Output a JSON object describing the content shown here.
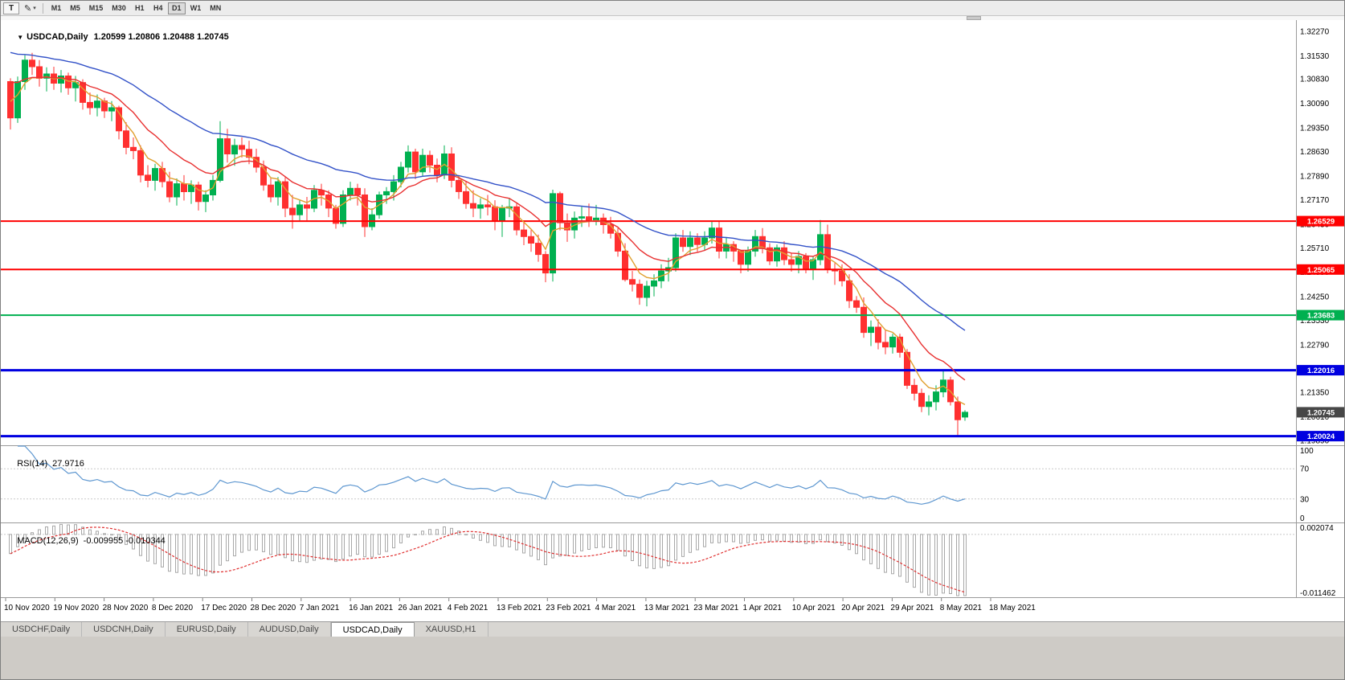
{
  "toolbar": {
    "t_button": "T",
    "annotation_tool": "✎",
    "dropdown_arrow": "▾",
    "timeframes": [
      "M1",
      "M5",
      "M15",
      "M30",
      "H1",
      "H4",
      "D1",
      "W1",
      "MN"
    ],
    "active_timeframe": "D1"
  },
  "price_pane": {
    "collapse_arrow": "▼",
    "symbol_label": "USDCAD,Daily",
    "ohlc_text": "1.20599 1.20806 1.20488 1.20745",
    "ohlc": {
      "open": 1.20599,
      "high": 1.20806,
      "low": 1.20488,
      "close": 1.20745
    },
    "axis_labels": [
      "1.32270",
      "1.31530",
      "1.30830",
      "1.30090",
      "1.29350",
      "1.28630",
      "1.27890",
      "1.27170",
      "1.26430",
      "1.25710",
      "1.24990",
      "1.24250",
      "1.23530",
      "1.22790",
      "1.22050",
      "1.21350",
      "1.20610",
      "1.19890"
    ],
    "current_price_badge": {
      "price": 1.20745,
      "label": "1.20745",
      "color": "#474747"
    }
  },
  "rsi_pane": {
    "name": "RSI(14)",
    "value": "27.9716",
    "axis_labels": [
      "100",
      "70",
      "30",
      "0"
    ],
    "levels": [
      70,
      30
    ],
    "range": [
      0,
      100
    ],
    "line_color": "#5e97d0"
  },
  "macd_pane": {
    "name": "MACD(12,26,9)",
    "values": "-0.009955 -0.010344",
    "macd_value": -0.009955,
    "signal_value": -0.010344,
    "axis_top_label": "0.002074",
    "axis_bottom_label": "-0.011462",
    "range": [
      -0.011462,
      0.002074
    ],
    "histogram_color": "#a8a8a8",
    "signal_color": "#e03030"
  },
  "time_axis": {
    "labels": [
      "10 Nov 2020",
      "19 Nov 2020",
      "28 Nov 2020",
      "8 Dec 2020",
      "17 Dec 2020",
      "28 Dec 2020",
      "7 Jan 2021",
      "16 Jan 2021",
      "26 Jan 2021",
      "4 Feb 2021",
      "13 Feb 2021",
      "23 Feb 2021",
      "4 Mar 2021",
      "13 Mar 2021",
      "23 Mar 2021",
      "1 Apr 2021",
      "10 Apr 2021",
      "20 Apr 2021",
      "29 Apr 2021",
      "8 May 2021",
      "18 May 2021"
    ]
  },
  "tabs": {
    "items": [
      "USDCHF,Daily",
      "USDCNH,Daily",
      "EURUSD,Daily",
      "AUDUSD,Daily",
      "USDCAD,Daily",
      "XAUUSD,H1"
    ],
    "active": "USDCAD,Daily"
  },
  "chart_data": {
    "type": "candlestick",
    "symbol": "USDCAD",
    "timeframe": "Daily",
    "visible_price_range": [
      1.1977,
      1.3261
    ],
    "colors": {
      "bull": "#00B050",
      "bear": "#FF3030"
    },
    "hlines": [
      {
        "price": 1.26529,
        "label": "1.26529",
        "color": "#FF0000",
        "width": 2
      },
      {
        "price": 1.25065,
        "label": "1.25065",
        "color": "#FF0000",
        "width": 2
      },
      {
        "price": 1.23683,
        "label": "1.23683",
        "color": "#00B050",
        "width": 2
      },
      {
        "price": 1.22016,
        "label": "1.22016",
        "color": "#0000E0",
        "width": 3
      },
      {
        "price": 1.20024,
        "label": "1.20024",
        "color": "#0000E0",
        "width": 3
      }
    ],
    "moving_averages": [
      {
        "name": "ma-fast",
        "period": 5,
        "method": "ema",
        "color": "#E0A030",
        "start_value": 1.304
      },
      {
        "name": "ma-medium",
        "period": 13,
        "method": "ema",
        "color": "#E83030",
        "start_value": 1.309
      },
      {
        "name": "ma-slow",
        "period": 34,
        "method": "ema",
        "color": "#3352C8",
        "start_value": 1.3175
      }
    ],
    "indicators": [
      {
        "type": "RSI",
        "period": 14,
        "current_value": 27.9716,
        "levels": [
          70,
          30
        ]
      },
      {
        "type": "MACD",
        "fast": 12,
        "slow": 26,
        "signal": 9,
        "current_macd": -0.009955,
        "current_signal": -0.010344
      }
    ],
    "candles_ohlc": [
      [
        1.3075,
        1.3085,
        1.293,
        1.2965
      ],
      [
        1.2965,
        1.309,
        1.295,
        1.3075
      ],
      [
        1.3075,
        1.3155,
        1.305,
        1.314
      ],
      [
        1.314,
        1.3162,
        1.3095,
        1.312
      ],
      [
        1.312,
        1.314,
        1.306,
        1.3085
      ],
      [
        1.3085,
        1.3118,
        1.3045,
        1.3098
      ],
      [
        1.3098,
        1.312,
        1.305,
        1.307
      ],
      [
        1.307,
        1.311,
        1.3042,
        1.3092
      ],
      [
        1.3092,
        1.3102,
        1.3035,
        1.3056
      ],
      [
        1.3056,
        1.3092,
        1.3015,
        1.3072
      ],
      [
        1.3072,
        1.3082,
        1.299,
        1.3012
      ],
      [
        1.3012,
        1.3042,
        1.2975,
        1.2996
      ],
      [
        1.2996,
        1.3036,
        1.297,
        1.3016
      ],
      [
        1.3016,
        1.3026,
        1.2965,
        1.2986
      ],
      [
        1.2986,
        1.3016,
        1.2955,
        1.2996
      ],
      [
        1.2996,
        1.3002,
        1.29,
        1.2926
      ],
      [
        1.2926,
        1.2952,
        1.2855,
        1.2876
      ],
      [
        1.2876,
        1.2906,
        1.284,
        1.2866
      ],
      [
        1.2866,
        1.2882,
        1.277,
        1.2792
      ],
      [
        1.2792,
        1.2822,
        1.2755,
        1.2776
      ],
      [
        1.2776,
        1.2826,
        1.2745,
        1.2812
      ],
      [
        1.2812,
        1.2832,
        1.2755,
        1.2772
      ],
      [
        1.2772,
        1.2802,
        1.271,
        1.2726
      ],
      [
        1.2726,
        1.2782,
        1.27,
        1.2766
      ],
      [
        1.2766,
        1.2792,
        1.2715,
        1.2742
      ],
      [
        1.2742,
        1.2776,
        1.2705,
        1.2762
      ],
      [
        1.2762,
        1.2772,
        1.2685,
        1.2712
      ],
      [
        1.2712,
        1.2746,
        1.268,
        1.2732
      ],
      [
        1.2732,
        1.2792,
        1.2715,
        1.2776
      ],
      [
        1.2776,
        1.2955,
        1.277,
        1.2902
      ],
      [
        1.2902,
        1.2932,
        1.283,
        1.2856
      ],
      [
        1.2856,
        1.2902,
        1.282,
        1.2882
      ],
      [
        1.2882,
        1.2906,
        1.2845,
        1.287
      ],
      [
        1.287,
        1.2896,
        1.2825,
        1.2846
      ],
      [
        1.2846,
        1.2872,
        1.28,
        1.2816
      ],
      [
        1.2816,
        1.2836,
        1.2745,
        1.2762
      ],
      [
        1.2762,
        1.2782,
        1.271,
        1.2726
      ],
      [
        1.2726,
        1.2786,
        1.27,
        1.2772
      ],
      [
        1.2772,
        1.2786,
        1.2665,
        1.2692
      ],
      [
        1.2692,
        1.2732,
        1.263,
        1.2672
      ],
      [
        1.2672,
        1.2716,
        1.2655,
        1.2702
      ],
      [
        1.2702,
        1.2726,
        1.2655,
        1.2692
      ],
      [
        1.2692,
        1.2762,
        1.268,
        1.2746
      ],
      [
        1.2746,
        1.2766,
        1.27,
        1.2732
      ],
      [
        1.2732,
        1.2746,
        1.2665,
        1.2692
      ],
      [
        1.2692,
        1.2702,
        1.263,
        1.2646
      ],
      [
        1.2646,
        1.2746,
        1.2635,
        1.2732
      ],
      [
        1.2732,
        1.2772,
        1.2715,
        1.2752
      ],
      [
        1.2752,
        1.2766,
        1.27,
        1.2732
      ],
      [
        1.2732,
        1.2752,
        1.2605,
        1.2636
      ],
      [
        1.2636,
        1.2692,
        1.2625,
        1.2672
      ],
      [
        1.2672,
        1.2742,
        1.266,
        1.2732
      ],
      [
        1.2732,
        1.2756,
        1.2705,
        1.2742
      ],
      [
        1.2742,
        1.2792,
        1.2715,
        1.2772
      ],
      [
        1.2772,
        1.2832,
        1.2755,
        1.2816
      ],
      [
        1.2816,
        1.2882,
        1.28,
        1.2862
      ],
      [
        1.2862,
        1.2872,
        1.278,
        1.2802
      ],
      [
        1.2802,
        1.2872,
        1.279,
        1.2852
      ],
      [
        1.2852,
        1.2866,
        1.28,
        1.2822
      ],
      [
        1.2822,
        1.2842,
        1.277,
        1.2792
      ],
      [
        1.2792,
        1.2882,
        1.278,
        1.2856
      ],
      [
        1.2856,
        1.2876,
        1.2755,
        1.2776
      ],
      [
        1.2776,
        1.2792,
        1.272,
        1.2742
      ],
      [
        1.2742,
        1.2772,
        1.269,
        1.2706
      ],
      [
        1.2706,
        1.2746,
        1.2665,
        1.2692
      ],
      [
        1.2692,
        1.2722,
        1.266,
        1.2702
      ],
      [
        1.2702,
        1.2732,
        1.267,
        1.2696
      ],
      [
        1.2696,
        1.2716,
        1.2625,
        1.2652
      ],
      [
        1.2652,
        1.2702,
        1.2605,
        1.2692
      ],
      [
        1.2692,
        1.2722,
        1.2665,
        1.2696
      ],
      [
        1.2696,
        1.2706,
        1.261,
        1.2626
      ],
      [
        1.2626,
        1.2652,
        1.258,
        1.2606
      ],
      [
        1.2606,
        1.2626,
        1.256,
        1.2586
      ],
      [
        1.2586,
        1.2612,
        1.253,
        1.2552
      ],
      [
        1.2552,
        1.2562,
        1.2468,
        1.2496
      ],
      [
        1.2496,
        1.2748,
        1.247,
        1.2736
      ],
      [
        1.2736,
        1.2742,
        1.2625,
        1.2648
      ],
      [
        1.2648,
        1.2676,
        1.259,
        1.2626
      ],
      [
        1.2626,
        1.2682,
        1.26,
        1.2662
      ],
      [
        1.2662,
        1.2696,
        1.2635,
        1.2666
      ],
      [
        1.2666,
        1.2706,
        1.2635,
        1.2656
      ],
      [
        1.2656,
        1.2702,
        1.264,
        1.2662
      ],
      [
        1.2662,
        1.2676,
        1.2615,
        1.2642
      ],
      [
        1.2642,
        1.2666,
        1.26,
        1.2616
      ],
      [
        1.2616,
        1.2632,
        1.2545,
        1.2562
      ],
      [
        1.2562,
        1.2586,
        1.247,
        1.2476
      ],
      [
        1.2476,
        1.2502,
        1.244,
        1.2462
      ],
      [
        1.2462,
        1.2476,
        1.24,
        1.2422
      ],
      [
        1.2422,
        1.2472,
        1.2395,
        1.2456
      ],
      [
        1.2456,
        1.2492,
        1.2425,
        1.2472
      ],
      [
        1.2472,
        1.2522,
        1.245,
        1.2502
      ],
      [
        1.2502,
        1.2542,
        1.247,
        1.2512
      ],
      [
        1.2512,
        1.2616,
        1.25,
        1.2602
      ],
      [
        1.2602,
        1.2626,
        1.256,
        1.2576
      ],
      [
        1.2576,
        1.2622,
        1.255,
        1.2602
      ],
      [
        1.2602,
        1.2616,
        1.256,
        1.2582
      ],
      [
        1.2582,
        1.2622,
        1.2565,
        1.2602
      ],
      [
        1.2602,
        1.2652,
        1.2585,
        1.2632
      ],
      [
        1.2632,
        1.2652,
        1.254,
        1.2562
      ],
      [
        1.2562,
        1.2602,
        1.254,
        1.2582
      ],
      [
        1.2582,
        1.2592,
        1.253,
        1.2562
      ],
      [
        1.2562,
        1.2566,
        1.2495,
        1.2522
      ],
      [
        1.2522,
        1.2576,
        1.25,
        1.2562
      ],
      [
        1.2562,
        1.2626,
        1.2545,
        1.2606
      ],
      [
        1.2606,
        1.2632,
        1.2555,
        1.2572
      ],
      [
        1.2572,
        1.2586,
        1.252,
        1.2532
      ],
      [
        1.2532,
        1.2582,
        1.2515,
        1.2572
      ],
      [
        1.2572,
        1.2592,
        1.252,
        1.2536
      ],
      [
        1.2536,
        1.2556,
        1.25,
        1.2522
      ],
      [
        1.2522,
        1.2562,
        1.2495,
        1.2546
      ],
      [
        1.2546,
        1.2556,
        1.2495,
        1.2506
      ],
      [
        1.2506,
        1.2546,
        1.2475,
        1.2536
      ],
      [
        1.2536,
        1.2656,
        1.252,
        1.2612
      ],
      [
        1.2612,
        1.2642,
        1.2495,
        1.2506
      ],
      [
        1.2506,
        1.2526,
        1.246,
        1.2502
      ],
      [
        1.2502,
        1.2522,
        1.2455,
        1.2472
      ],
      [
        1.2472,
        1.2492,
        1.239,
        1.2412
      ],
      [
        1.2412,
        1.2426,
        1.2375,
        1.2392
      ],
      [
        1.2392,
        1.2422,
        1.23,
        1.2316
      ],
      [
        1.2316,
        1.2352,
        1.2275,
        1.2332
      ],
      [
        1.2332,
        1.2356,
        1.2265,
        1.2286
      ],
      [
        1.2286,
        1.2322,
        1.225,
        1.2272
      ],
      [
        1.2272,
        1.2312,
        1.2252,
        1.2302
      ],
      [
        1.2302,
        1.2312,
        1.224,
        1.2256
      ],
      [
        1.2256,
        1.2266,
        1.2145,
        1.2156
      ],
      [
        1.2156,
        1.2176,
        1.211,
        1.2132
      ],
      [
        1.2132,
        1.2146,
        1.2075,
        1.2092
      ],
      [
        1.2092,
        1.2126,
        1.2065,
        1.2106
      ],
      [
        1.2106,
        1.2156,
        1.208,
        1.2136
      ],
      [
        1.2136,
        1.2202,
        1.212,
        1.2172
      ],
      [
        1.2172,
        1.2182,
        1.2095,
        1.2106
      ],
      [
        1.2106,
        1.2122,
        1.2005,
        1.2052
      ],
      [
        1.20599,
        1.20806,
        1.20488,
        1.20745
      ]
    ]
  }
}
